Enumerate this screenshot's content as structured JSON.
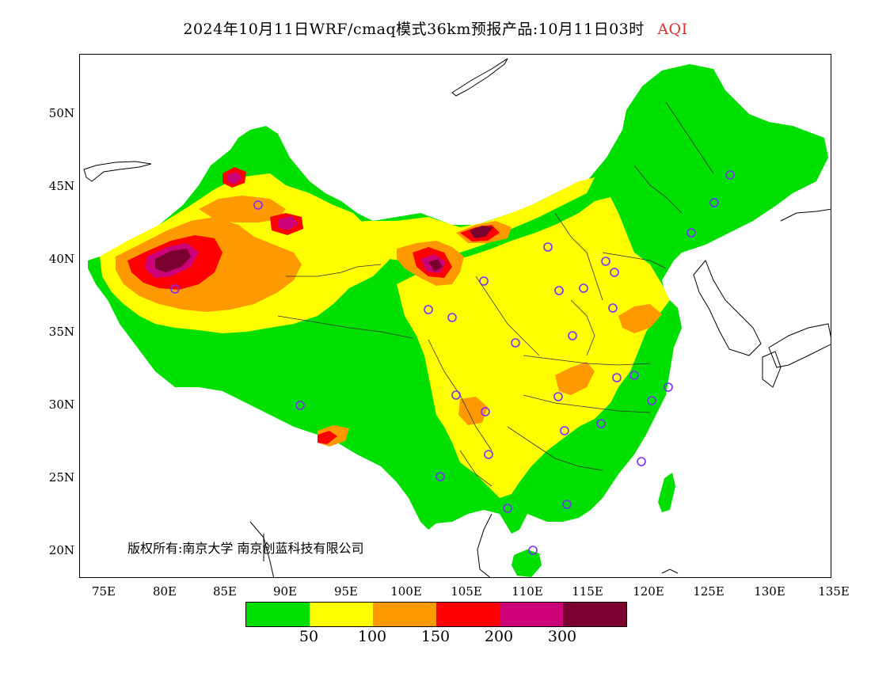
{
  "title": {
    "main": "2024年10月11日WRF/cmaq模式36km预报产品:10月11日03时",
    "product": "AQI"
  },
  "axes": {
    "y_ticks": [
      "50N",
      "45N",
      "40N",
      "35N",
      "30N",
      "25N",
      "20N"
    ],
    "x_ticks": [
      "75E",
      "80E",
      "85E",
      "90E",
      "95E",
      "100E",
      "105E",
      "110E",
      "115E",
      "120E",
      "125E",
      "130E",
      "135E"
    ]
  },
  "copyright": "版权所有:南京大学 南京创蓝科技有限公司",
  "legend": {
    "colors": [
      "#00e000",
      "#ffff00",
      "#ff9900",
      "#ff0000",
      "#cc0077",
      "#7a0030"
    ],
    "labels": [
      "50",
      "100",
      "150",
      "200",
      "300"
    ]
  },
  "map": {
    "extent_lon": [
      73,
      135
    ],
    "extent_lat": [
      18,
      54
    ],
    "station_marker_color": "#7b2cff",
    "pollution_hotspots": [
      "Tarim Basin",
      "Hexi Corridor / Inner Mongolia west",
      "North China Plain",
      "Sichuan Basin",
      "Central China"
    ]
  }
}
